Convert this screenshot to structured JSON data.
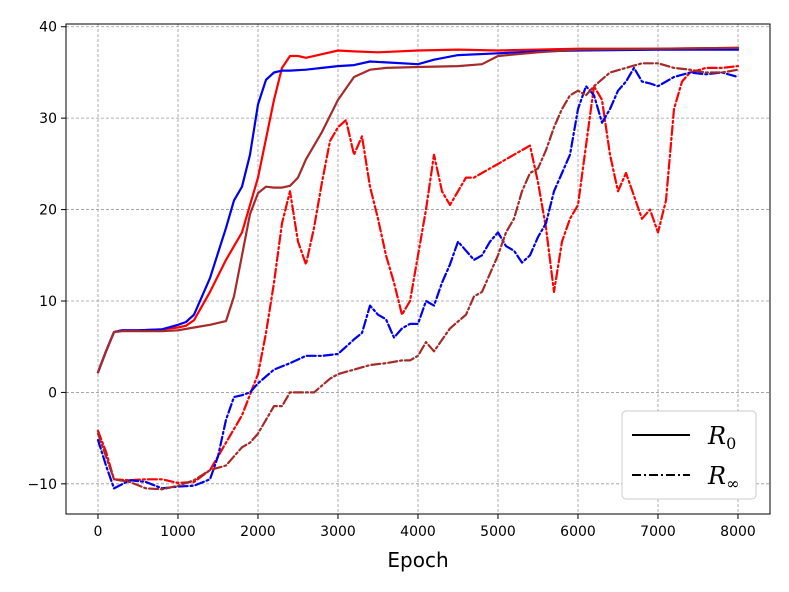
{
  "chart_data": {
    "type": "line",
    "title": "",
    "xlabel": "Epoch",
    "ylabel": "",
    "xlim": [
      -400,
      8400
    ],
    "ylim": [
      -13.3,
      40.3
    ],
    "xticks": [
      0,
      1000,
      2000,
      3000,
      4000,
      5000,
      6000,
      7000,
      8000
    ],
    "yticks": [
      -10,
      0,
      10,
      20,
      30,
      40
    ],
    "grid": true,
    "legend_position": "lower-right",
    "legend": [
      {
        "symbol": "R",
        "subscript": "0",
        "style": "solid"
      },
      {
        "symbol": "R",
        "subscript": "∞",
        "style": "dashdot"
      }
    ],
    "series": [
      {
        "color": "#ff0000",
        "style": "solid",
        "x": [
          0,
          100,
          200,
          300,
          500,
          800,
          1000,
          1100,
          1200,
          1400,
          1600,
          1800,
          2000,
          2200,
          2300,
          2400,
          2500,
          2600,
          2800,
          3000,
          3200,
          3500,
          4000,
          4500,
          5000,
          6000,
          7000,
          8000
        ],
        "y": [
          2.2,
          4.5,
          6.6,
          6.8,
          6.8,
          6.9,
          7.1,
          7.3,
          7.9,
          11,
          14.5,
          17.5,
          23.5,
          32,
          35.5,
          36.8,
          36.8,
          36.6,
          37,
          37.4,
          37.3,
          37.2,
          37.4,
          37.5,
          37.4,
          37.6,
          37.6,
          37.7
        ]
      },
      {
        "color": "#0000ee",
        "style": "solid",
        "x": [
          0,
          100,
          200,
          300,
          500,
          800,
          1000,
          1100,
          1200,
          1400,
          1600,
          1700,
          1800,
          1900,
          2000,
          2100,
          2200,
          2300,
          2400,
          2600,
          2800,
          3000,
          3200,
          3400,
          3600,
          4000,
          4200,
          4500,
          5000,
          5500,
          6000,
          7000,
          8000
        ],
        "y": [
          2.2,
          4.5,
          6.6,
          6.8,
          6.8,
          6.9,
          7.4,
          7.7,
          8.5,
          12.5,
          18,
          21,
          22.5,
          26,
          31.5,
          34.2,
          35,
          35.2,
          35.2,
          35.3,
          35.5,
          35.7,
          35.8,
          36.2,
          36.1,
          35.9,
          36.4,
          36.9,
          37.1,
          37.3,
          37.4,
          37.5,
          37.5
        ]
      },
      {
        "color": "#a52a2a",
        "style": "solid",
        "x": [
          0,
          100,
          200,
          300,
          500,
          800,
          1000,
          1200,
          1400,
          1600,
          1700,
          1800,
          1900,
          2000,
          2100,
          2200,
          2300,
          2400,
          2500,
          2600,
          2800,
          3000,
          3200,
          3400,
          3600,
          4000,
          4500,
          4800,
          5000,
          5500,
          6000,
          7000,
          8000
        ],
        "y": [
          2.2,
          4.5,
          6.6,
          6.7,
          6.7,
          6.7,
          6.8,
          7.1,
          7.4,
          7.8,
          10.5,
          15,
          19.5,
          21.8,
          22.5,
          22.4,
          22.4,
          22.6,
          23.5,
          25.5,
          28.5,
          32,
          34.5,
          35.3,
          35.5,
          35.6,
          35.7,
          35.9,
          36.8,
          37.2,
          37.5,
          37.6,
          37.7
        ]
      },
      {
        "color": "#ff0000",
        "style": "dashdot",
        "x": [
          0,
          100,
          200,
          400,
          600,
          800,
          1000,
          1200,
          1400,
          1600,
          1800,
          2000,
          2100,
          2200,
          2300,
          2400,
          2500,
          2600,
          2700,
          2800,
          2900,
          3000,
          3100,
          3200,
          3300,
          3400,
          3500,
          3600,
          3700,
          3800,
          3900,
          4000,
          4100,
          4200,
          4300,
          4400,
          4500,
          4600,
          4700,
          4800,
          5000,
          5200,
          5400,
          5500,
          5600,
          5700,
          5800,
          5900,
          6000,
          6100,
          6200,
          6300,
          6400,
          6500,
          6600,
          6700,
          6800,
          6900,
          7000,
          7100,
          7200,
          7300,
          7400,
          7600,
          7800,
          8000
        ],
        "y": [
          -4.2,
          -6.5,
          -9.5,
          -9.6,
          -9.5,
          -9.5,
          -9.9,
          -9.8,
          -8.5,
          -5.5,
          -2.5,
          2,
          6.5,
          12,
          18.5,
          22,
          16.5,
          14,
          18,
          23,
          27.5,
          29,
          29.8,
          26,
          28,
          22.5,
          19,
          15,
          12,
          8.5,
          10,
          15,
          20,
          26,
          22,
          20.5,
          22,
          23.5,
          23.5,
          24,
          25,
          26,
          27,
          23,
          18,
          11,
          16.5,
          19,
          20.5,
          27,
          33.5,
          32,
          26,
          22,
          24,
          21.5,
          19,
          20,
          17.5,
          21,
          31,
          34,
          35,
          35.5,
          35.5,
          35.7
        ]
      },
      {
        "color": "#0000ee",
        "style": "dashdot",
        "x": [
          0,
          100,
          200,
          400,
          600,
          800,
          1000,
          1200,
          1400,
          1500,
          1600,
          1700,
          1800,
          1900,
          2000,
          2200,
          2400,
          2600,
          2800,
          3000,
          3200,
          3300,
          3400,
          3500,
          3600,
          3700,
          3800,
          3900,
          4000,
          4100,
          4200,
          4300,
          4400,
          4500,
          4600,
          4700,
          4800,
          4900,
          5000,
          5100,
          5200,
          5300,
          5400,
          5500,
          5600,
          5700,
          5800,
          5900,
          6000,
          6100,
          6200,
          6300,
          6400,
          6500,
          6600,
          6700,
          6800,
          6900,
          7000,
          7200,
          7400,
          7600,
          7800,
          8000
        ],
        "y": [
          -5.2,
          -8,
          -10.5,
          -9.6,
          -9.8,
          -10.5,
          -10.3,
          -10.2,
          -9.5,
          -7,
          -3,
          -0.5,
          -0.3,
          0,
          1,
          2.5,
          3.2,
          4,
          4,
          4.2,
          5.8,
          6.5,
          9.5,
          8.5,
          8,
          6,
          7,
          7.5,
          7.5,
          10,
          9.5,
          12,
          14,
          16.5,
          15.5,
          14.5,
          15,
          16.5,
          17.5,
          16,
          15.5,
          14.2,
          15,
          17,
          18.5,
          22,
          24,
          26,
          31,
          33.5,
          32.5,
          29.5,
          31,
          33,
          34,
          35.5,
          34,
          33.8,
          33.5,
          34.5,
          35,
          34.8,
          35,
          34.5
        ]
      },
      {
        "color": "#a52a2a",
        "style": "dashdot",
        "x": [
          0,
          100,
          200,
          400,
          600,
          800,
          1000,
          1200,
          1400,
          1600,
          1800,
          1900,
          2000,
          2100,
          2200,
          2300,
          2400,
          2500,
          2700,
          2900,
          3000,
          3200,
          3400,
          3600,
          3800,
          3900,
          4000,
          4100,
          4200,
          4400,
          4600,
          4700,
          4800,
          4900,
          5000,
          5100,
          5200,
          5300,
          5400,
          5500,
          5600,
          5700,
          5800,
          5900,
          6000,
          6100,
          6200,
          6400,
          6600,
          6800,
          7000,
          7200,
          7400,
          7600,
          7800,
          8000
        ],
        "y": [
          -4.5,
          -7,
          -9.5,
          -9.8,
          -10.5,
          -10.6,
          -10.2,
          -9.6,
          -8.5,
          -8,
          -6,
          -5.5,
          -4.5,
          -3,
          -1.5,
          -1.5,
          0,
          0,
          0,
          1.5,
          2,
          2.5,
          3,
          3.2,
          3.5,
          3.5,
          4,
          5.5,
          4.5,
          7,
          8.5,
          10.5,
          11,
          13,
          15,
          17.5,
          19,
          22,
          24,
          24.5,
          26.5,
          29,
          31,
          32.5,
          33,
          32.5,
          33.5,
          35,
          35.5,
          36,
          36,
          35.5,
          35.3,
          35,
          35,
          35.3
        ]
      }
    ]
  }
}
